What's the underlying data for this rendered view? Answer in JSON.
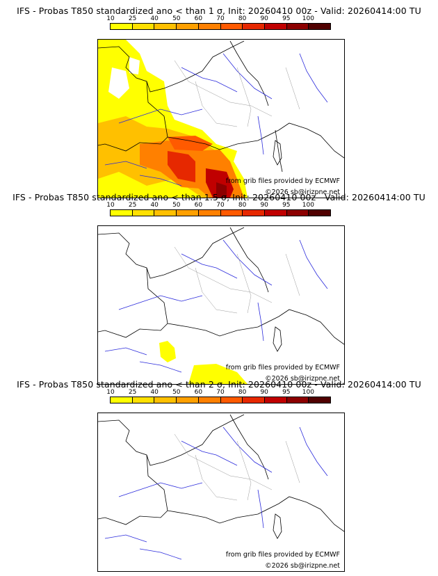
{
  "panels": [
    {
      "title": "IFS - Probas T850  standardized ano < than 1 σ, Init: 20260410 00z - Valid: 20260414:00 TU",
      "threshold_sigma": 1,
      "coverage": "high"
    },
    {
      "title": "IFS - Probas T850  standardized ano < than 1.5 σ, Init: 20260410 00z - Valid: 20260414:00 TU",
      "threshold_sigma": 1.5,
      "coverage": "low"
    },
    {
      "title": "IFS - Probas T850  standardized ano < than 2 σ, Init: 20260410 00z - Valid: 20260414:00 TU",
      "threshold_sigma": 2,
      "coverage": "none"
    }
  ],
  "legend": {
    "labels": [
      "10",
      "25",
      "40",
      "50",
      "60",
      "70",
      "80",
      "90",
      "95",
      "100"
    ],
    "colors": [
      "#ffff00",
      "#ffe000",
      "#ffc000",
      "#ffa000",
      "#ff8000",
      "#ff5a00",
      "#e62800",
      "#c00000",
      "#8c0000",
      "#500000"
    ]
  },
  "credits": {
    "source": "from grib files provided by ECMWF",
    "copyright": "©2026 sb@irizpne.net"
  }
}
